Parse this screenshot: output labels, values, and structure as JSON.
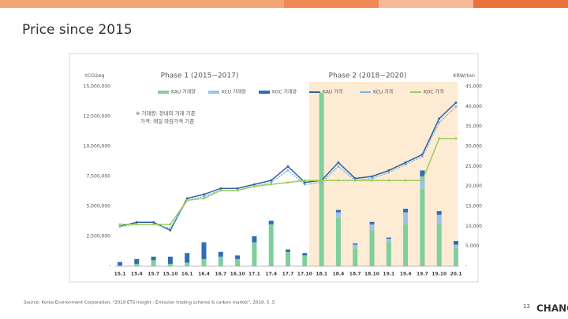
{
  "slide": {
    "title": "Price since 2015",
    "source": "Source: Korea Environment Corporation, \"2019 ETS Insight : Emission trading scheme & carbon market\", 2019. 5. 5",
    "page": "13",
    "logo": "CHANG"
  },
  "chart_data": {
    "type": "combo",
    "phases": [
      "Phase 1 (2015~2017)",
      "Phase 2 (2018~2020)"
    ],
    "ylabel": "tCO2eq",
    "y2label": "KRW/ton",
    "annotations": [
      "※ 거래량: 장내외 거래 기준",
      "가격: 매일 마감가격 기준"
    ],
    "categories": [
      "15.1",
      "15.4",
      "15.7",
      "15.10",
      "16.1",
      "16.4",
      "16.7",
      "16.10",
      "17.1",
      "17.4",
      "17.7",
      "17.10",
      "18.1",
      "18.4",
      "18.7",
      "18.10",
      "19.1",
      "19.4",
      "19.7",
      "19.10",
      "20.1"
    ],
    "ylim": [
      0,
      15000000
    ],
    "yticks": [
      {
        "value": 0,
        "label": "-"
      },
      {
        "value": 2500000,
        "label": "2,500,000"
      },
      {
        "value": 5000000,
        "label": "5,000,000"
      },
      {
        "value": 7500000,
        "label": "7,500,000"
      },
      {
        "value": 10000000,
        "label": "10,000,000"
      },
      {
        "value": 12500000,
        "label": "12,500,000"
      },
      {
        "value": 15000000,
        "label": "15,000,000"
      }
    ],
    "y2lim": [
      0,
      45000
    ],
    "y2ticks": [
      {
        "value": 0,
        "label": "-"
      },
      {
        "value": 5000,
        "label": "5,000"
      },
      {
        "value": 10000,
        "label": "10,000"
      },
      {
        "value": 15000,
        "label": "15,000"
      },
      {
        "value": 20000,
        "label": "20,000"
      },
      {
        "value": 25000,
        "label": "25,000"
      },
      {
        "value": 30000,
        "label": "30,000"
      },
      {
        "value": 35000,
        "label": "35,000"
      },
      {
        "value": 40000,
        "label": "40,000"
      },
      {
        "value": 45000,
        "label": "45,000"
      }
    ],
    "series": [
      {
        "name": "KAU 거래량",
        "kind": "bar",
        "color": "#7fcf9c",
        "values": [
          0,
          200000,
          500000,
          200000,
          300000,
          600000,
          800000,
          600000,
          2000000,
          3500000,
          1200000,
          900000,
          14500000,
          4000000,
          1500000,
          3000000,
          2000000,
          3500000,
          6500000,
          3500000,
          1500000
        ]
      },
      {
        "name": "KCU 거래량",
        "kind": "bar",
        "color": "#9cc3e6",
        "values": [
          50000,
          0,
          0,
          0,
          0,
          0,
          0,
          0,
          0,
          0,
          0,
          0,
          0,
          500000,
          300000,
          500000,
          300000,
          1000000,
          1000000,
          800000,
          300000
        ]
      },
      {
        "name": "KOC 거래량",
        "kind": "bar",
        "color": "#2f6db5",
        "values": [
          300000,
          400000,
          300000,
          600000,
          800000,
          1400000,
          400000,
          300000,
          500000,
          300000,
          200000,
          200000,
          0,
          200000,
          100000,
          200000,
          100000,
          300000,
          500000,
          300000,
          300000
        ]
      },
      {
        "name": "KAU 가격",
        "kind": "line",
        "axis": "y2",
        "color": "#2f5f9e",
        "values": [
          10000,
          11000,
          11000,
          9000,
          17000,
          18000,
          19500,
          19500,
          20500,
          21500,
          25000,
          21000,
          21500,
          26000,
          22000,
          22500,
          24000,
          26000,
          28000,
          37000,
          41000
        ]
      },
      {
        "name": "KCU 가격",
        "kind": "line",
        "axis": "y2",
        "color": "#7fb6e0",
        "values": [
          10000,
          10500,
          10500,
          9500,
          16500,
          17500,
          19000,
          19000,
          20000,
          21000,
          24000,
          20500,
          21000,
          25000,
          21500,
          22000,
          23500,
          25500,
          27500,
          36000,
          40000
        ]
      },
      {
        "name": "KOC 가격",
        "kind": "line",
        "axis": "y2",
        "color": "#9acd5a",
        "values": [
          10500,
          10500,
          10500,
          10500,
          16500,
          17000,
          19000,
          19000,
          20000,
          20500,
          21000,
          21500,
          21500,
          21500,
          21500,
          21500,
          21500,
          21500,
          21500,
          32000,
          32000
        ]
      }
    ]
  }
}
